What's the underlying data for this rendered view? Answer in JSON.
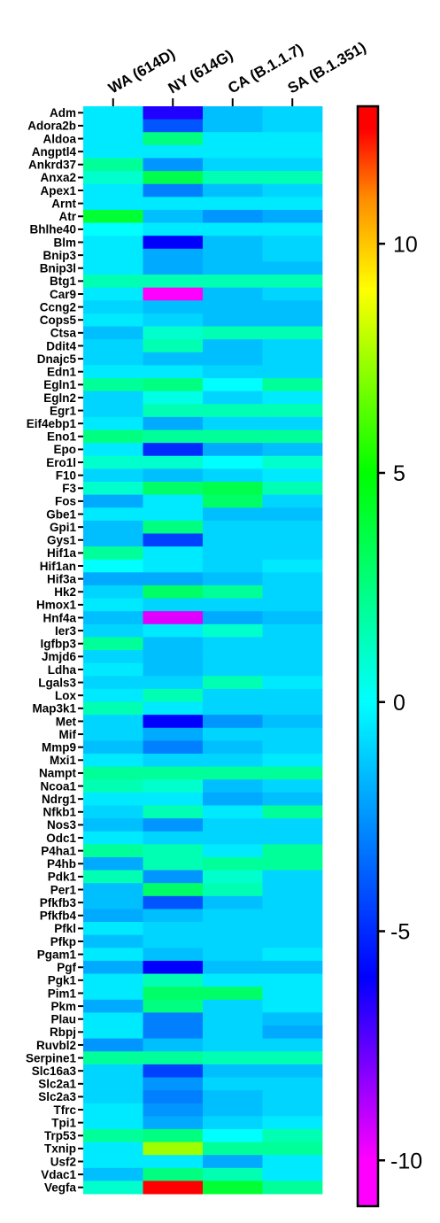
{
  "chart_data": {
    "type": "heatmap",
    "columns": [
      "WA (614D)",
      "NY (614G)",
      "CA (B.1.1.7)",
      "SA (B.1.351)"
    ],
    "rows": [
      "Adm",
      "Adora2b",
      "Aldoa",
      "Angptl4",
      "Ankrd37",
      "Anxa2",
      "Apex1",
      "Arnt",
      "Atr",
      "Bhlhe40",
      "Blm",
      "Bnip3",
      "Bnip3l",
      "Btg1",
      "Car9",
      "Ccng2",
      "Cops5",
      "Ctsa",
      "Ddit4",
      "Dnajc5",
      "Edn1",
      "Egln1",
      "Egln2",
      "Egr1",
      "Eif4ebp1",
      "Eno1",
      "Epo",
      "Ero1l",
      "F10",
      "F3",
      "Fos",
      "Gbe1",
      "Gpi1",
      "Gys1",
      "Hif1a",
      "Hif1an",
      "Hif3a",
      "Hk2",
      "Hmox1",
      "Hnf4a",
      "Ier3",
      "Igfbp3",
      "Jmjd6",
      "Ldha",
      "Lgals3",
      "Lox",
      "Map3k1",
      "Met",
      "Mif",
      "Mmp9",
      "Mxi1",
      "Nampt",
      "Ncoa1",
      "Ndrg1",
      "Nfkb1",
      "Nos3",
      "Odc1",
      "P4ha1",
      "P4hb",
      "Pdk1",
      "Per1",
      "Pfkfb3",
      "Pfkfb4",
      "Pfkl",
      "Pfkp",
      "Pgam1",
      "Pgf",
      "Pgk1",
      "Pim1",
      "Pkm",
      "Plau",
      "Rbpj",
      "Ruvbl2",
      "Serpine1",
      "Slc16a3",
      "Slc2a1",
      "Slc2a3",
      "Tfrc",
      "Tpi1",
      "Trp53",
      "Txnip",
      "Usf2",
      "Vdac1",
      "Vegfa"
    ],
    "values": [
      [
        -0.5,
        -6.5,
        -1.5,
        -1.0
      ],
      [
        -0.5,
        -4.0,
        -1.5,
        -1.0
      ],
      [
        -0.5,
        2.5,
        -0.5,
        -0.5
      ],
      [
        -0.5,
        -0.5,
        -0.5,
        -0.5
      ],
      [
        2.0,
        -2.5,
        -1.0,
        -1.0
      ],
      [
        1.0,
        3.5,
        1.5,
        1.5
      ],
      [
        -0.5,
        -3.0,
        -1.5,
        -1.0
      ],
      [
        -0.5,
        -0.5,
        -0.5,
        -0.5
      ],
      [
        4.0,
        -1.5,
        -2.5,
        -2.0
      ],
      [
        0.0,
        -0.5,
        -0.5,
        -0.5
      ],
      [
        -0.5,
        -6.0,
        -1.5,
        -1.0
      ],
      [
        -0.5,
        -2.0,
        -1.5,
        -1.0
      ],
      [
        -0.5,
        -2.0,
        -1.5,
        -1.5
      ],
      [
        1.5,
        1.5,
        1.5,
        1.5
      ],
      [
        -0.5,
        -10.0,
        -1.5,
        -1.0
      ],
      [
        -1.0,
        -1.5,
        -1.5,
        -1.5
      ],
      [
        -0.5,
        -1.0,
        -1.5,
        -1.5
      ],
      [
        -1.5,
        1.0,
        1.5,
        1.5
      ],
      [
        -1.0,
        1.5,
        -1.5,
        -1.0
      ],
      [
        -1.0,
        -1.5,
        -1.5,
        -1.0
      ],
      [
        -0.5,
        -0.5,
        -1.0,
        -1.0
      ],
      [
        2.0,
        2.5,
        0.0,
        2.0
      ],
      [
        -1.0,
        0.5,
        -1.0,
        -0.5
      ],
      [
        -1.0,
        1.5,
        1.5,
        1.5
      ],
      [
        -0.5,
        -2.0,
        -1.0,
        -1.0
      ],
      [
        2.5,
        2.0,
        2.0,
        2.0
      ],
      [
        -0.5,
        -5.0,
        -2.0,
        -1.5
      ],
      [
        1.0,
        1.0,
        0.0,
        1.0
      ],
      [
        -1.0,
        -1.5,
        -1.0,
        -0.5
      ],
      [
        1.0,
        3.0,
        3.5,
        1.5
      ],
      [
        -2.0,
        -0.5,
        3.0,
        -1.0
      ],
      [
        -0.5,
        -0.5,
        -1.5,
        -1.5
      ],
      [
        -1.5,
        2.5,
        -1.0,
        -1.0
      ],
      [
        -1.5,
        -4.5,
        -1.0,
        -1.0
      ],
      [
        2.0,
        -0.5,
        -1.0,
        -1.0
      ],
      [
        0.0,
        -0.5,
        -1.0,
        -0.5
      ],
      [
        -2.0,
        -2.0,
        -1.5,
        -1.0
      ],
      [
        -1.0,
        3.0,
        2.0,
        -1.0
      ],
      [
        -0.5,
        -1.0,
        -1.0,
        -1.0
      ],
      [
        -1.5,
        -9.5,
        -2.0,
        -1.5
      ],
      [
        -1.0,
        -0.5,
        1.0,
        -1.0
      ],
      [
        2.0,
        -1.5,
        -1.0,
        -1.0
      ],
      [
        -1.0,
        -1.5,
        -1.0,
        -1.0
      ],
      [
        -0.5,
        -1.5,
        -1.0,
        -1.0
      ],
      [
        -1.0,
        -1.0,
        1.5,
        -0.5
      ],
      [
        -0.5,
        1.5,
        -1.0,
        -1.0
      ],
      [
        1.5,
        -0.5,
        -1.0,
        -1.0
      ],
      [
        -1.0,
        -6.0,
        -2.5,
        -1.5
      ],
      [
        -1.0,
        -2.0,
        -1.0,
        -1.0
      ],
      [
        -1.5,
        -3.0,
        -1.5,
        -1.0
      ],
      [
        -0.5,
        -1.0,
        -1.0,
        -0.5
      ],
      [
        2.0,
        2.0,
        2.0,
        2.0
      ],
      [
        1.5,
        1.0,
        -1.5,
        -1.0
      ],
      [
        -0.5,
        -0.5,
        -2.0,
        -1.5
      ],
      [
        -1.0,
        1.5,
        -0.5,
        2.0
      ],
      [
        -1.5,
        -2.5,
        -1.0,
        -1.0
      ],
      [
        -0.5,
        -1.0,
        -1.0,
        -1.0
      ],
      [
        2.0,
        1.5,
        -0.5,
        2.0
      ],
      [
        -2.0,
        1.5,
        2.0,
        2.0
      ],
      [
        1.5,
        -2.5,
        1.0,
        -1.0
      ],
      [
        -1.5,
        3.0,
        1.5,
        -1.0
      ],
      [
        -1.5,
        -4.0,
        -1.5,
        -1.0
      ],
      [
        -2.0,
        -1.5,
        -1.0,
        -1.0
      ],
      [
        -0.5,
        -1.0,
        -1.0,
        -1.0
      ],
      [
        -1.5,
        -1.0,
        -1.0,
        -1.0
      ],
      [
        -0.5,
        -1.5,
        -1.0,
        -0.5
      ],
      [
        -2.0,
        -6.0,
        -1.5,
        -1.5
      ],
      [
        -0.5,
        1.5,
        -0.5,
        -0.5
      ],
      [
        -0.5,
        3.0,
        3.0,
        -0.5
      ],
      [
        -2.0,
        2.5,
        -1.0,
        -0.5
      ],
      [
        -0.5,
        -3.0,
        -1.0,
        -1.5
      ],
      [
        -0.5,
        -3.0,
        -1.0,
        -2.0
      ],
      [
        -2.5,
        -1.5,
        -1.0,
        -1.0
      ],
      [
        2.0,
        2.0,
        1.5,
        1.5
      ],
      [
        -1.0,
        -4.5,
        -1.5,
        -1.5
      ],
      [
        -1.0,
        -2.5,
        -1.0,
        -1.0
      ],
      [
        -1.0,
        -3.0,
        -1.5,
        -1.0
      ],
      [
        -0.5,
        -2.5,
        -1.5,
        -1.0
      ],
      [
        -0.5,
        -2.0,
        -1.0,
        -0.5
      ],
      [
        2.0,
        2.5,
        0.0,
        1.5
      ],
      [
        -0.5,
        7.5,
        2.0,
        2.0
      ],
      [
        -0.5,
        -0.5,
        -2.0,
        -0.5
      ],
      [
        -1.5,
        2.5,
        1.5,
        -0.5
      ],
      [
        1.0,
        12.5,
        4.0,
        2.0
      ]
    ],
    "colorbar": {
      "min": -11,
      "max": 13,
      "ticks": [
        10,
        5,
        0,
        -5,
        -10
      ],
      "tick_labels": [
        "10",
        "5",
        "0",
        "-5",
        "-10"
      ]
    }
  }
}
